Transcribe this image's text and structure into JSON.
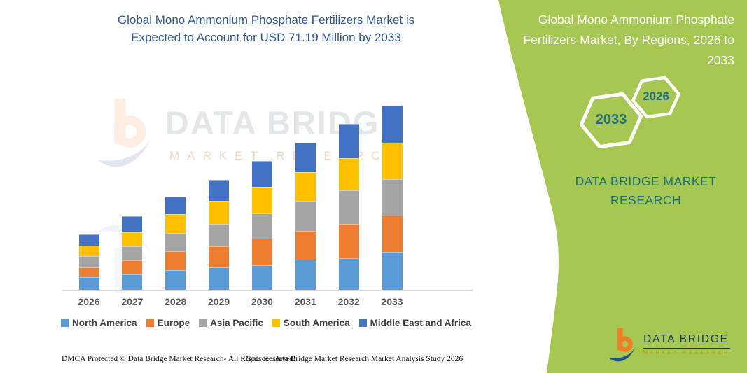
{
  "left": {
    "title": "Global Mono Ammonium Phosphate Fertilizers Market is\nExpected to Account for USD 71.19 Million by 2033"
  },
  "right_panel": {
    "background_color": "#a6c751",
    "title": "Global Mono Ammonium Phosphate\nFertilizers Market, By Regions, 2026 to\n2033",
    "hexagons": [
      {
        "label": "2033"
      },
      {
        "label": "2026"
      }
    ],
    "brand_text": "DATA BRIDGE MARKET\nRESEARCH",
    "accent_text_color": "#1a7082"
  },
  "watermark": {
    "brand": "DATA BRIDGE",
    "sub": "MARKET RESEARCH"
  },
  "chart_data": {
    "type": "bar",
    "stacked": true,
    "title": "Global Mono Ammonium Phosphate Fertilizers Market is Expected to Account for USD 71.19 Million by 2033",
    "unit": "USD Million",
    "categories": [
      "2026",
      "2027",
      "2028",
      "2029",
      "2030",
      "2031",
      "2032",
      "2033"
    ],
    "series": [
      {
        "name": "North America",
        "color": "#5b9bd5",
        "values": [
          4.9,
          5.9,
          7.6,
          8.7,
          9.6,
          11.7,
          12.3,
          14.5
        ]
      },
      {
        "name": "Europe",
        "color": "#ed7d31",
        "values": [
          3.9,
          5.6,
          7.4,
          8.1,
          10.2,
          11.1,
          13.2,
          14.2
        ]
      },
      {
        "name": "Asia Pacific",
        "color": "#a5a5a5",
        "values": [
          4.1,
          5.2,
          6.9,
          8.7,
          9.7,
          11.7,
          13.0,
          14.0
        ]
      },
      {
        "name": "South America",
        "color": "#ffc000",
        "values": [
          4.3,
          5.6,
          7.4,
          9.0,
          10.4,
          11.0,
          12.4,
          14.2
        ]
      },
      {
        "name": "Middle East and Africa",
        "color": "#4472c4",
        "values": [
          4.1,
          6.1,
          6.8,
          8.1,
          10.0,
          11.3,
          13.3,
          14.3
        ]
      }
    ],
    "totals": [
      21.3,
      28.4,
      36.1,
      42.6,
      49.9,
      56.8,
      64.2,
      71.2
    ],
    "ylim": [
      0,
      74
    ],
    "y_axis_visible": false,
    "gridlines": false,
    "legend_position": "bottom"
  },
  "footer": {
    "left": "DMCA Protected © Data Bridge Market Research-  All Rights Reserved.",
    "right": "Source: Data Bridge Market Research  Market Analysis Study 2026"
  },
  "logo": {
    "brand": "DATA BRIDGE",
    "sub": "MARKET RESEARCH"
  }
}
